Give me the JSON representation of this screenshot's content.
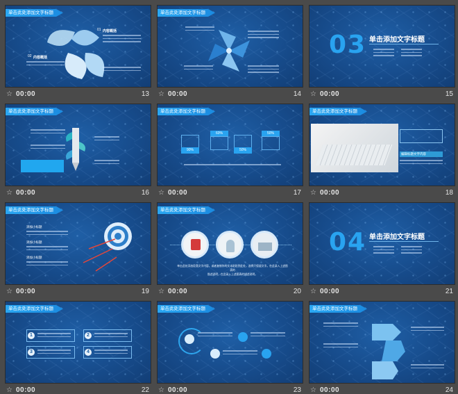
{
  "slides": [
    {
      "number": "13",
      "duration": "00:00",
      "tag": "单击此处添加文字标题",
      "texts": [
        "内容概括",
        "内容概括",
        "01",
        "02",
        "03",
        "内容",
        "编辑",
        "内容",
        "编辑"
      ]
    },
    {
      "number": "14",
      "duration": "00:00",
      "tag": "单击此处添加文字标题",
      "texts": [
        "01",
        "02",
        "03",
        "04"
      ]
    },
    {
      "number": "15",
      "duration": "00:00",
      "big": "03",
      "title": "单击添加文字标题"
    },
    {
      "number": "16",
      "duration": "00:00",
      "tag": "单击此处添加文字标题",
      "texts": [
        "1",
        "2",
        "3"
      ]
    },
    {
      "number": "17",
      "duration": "00:00",
      "tag": "单击此处添加文字标题",
      "texts": [
        "90%",
        "60%",
        "50%",
        "50%"
      ]
    },
    {
      "number": "18",
      "duration": "00:00",
      "tag": "单击此处添加文字标题",
      "texts": [
        "编辑标题文字内容"
      ]
    },
    {
      "number": "19",
      "duration": "00:00",
      "tag": "单击此处添加文字标题",
      "texts": [
        "添加小标题",
        "添加小标题",
        "添加小标题"
      ]
    },
    {
      "number": "20",
      "duration": "00:00",
      "tag": "单击此处添加文字标题",
      "texts": [
        "单击此处添加段落文字内容，或者复制你的文本粘贴到此处，选择只保留文字。在此录入上述图表的",
        "描述说明，在此录入上述图表的描述说明。"
      ]
    },
    {
      "number": "21",
      "duration": "00:00",
      "big": "04",
      "title": "单击添加文字标题"
    },
    {
      "number": "22",
      "duration": "00:00",
      "tag": "单击此处添加文字标题",
      "texts": [
        "1",
        "2",
        "3",
        "4"
      ]
    },
    {
      "number": "23",
      "duration": "00:00",
      "tag": "单击此处添加文字标题",
      "texts": []
    },
    {
      "number": "24",
      "duration": "00:00",
      "tag": "单击此处添加文字标题",
      "texts": []
    }
  ],
  "icons": {
    "transition": "star-transition-icon"
  },
  "colors": {
    "background": "#4a4a4a",
    "slide": "#174c8c",
    "accent": "#29a3f0"
  }
}
